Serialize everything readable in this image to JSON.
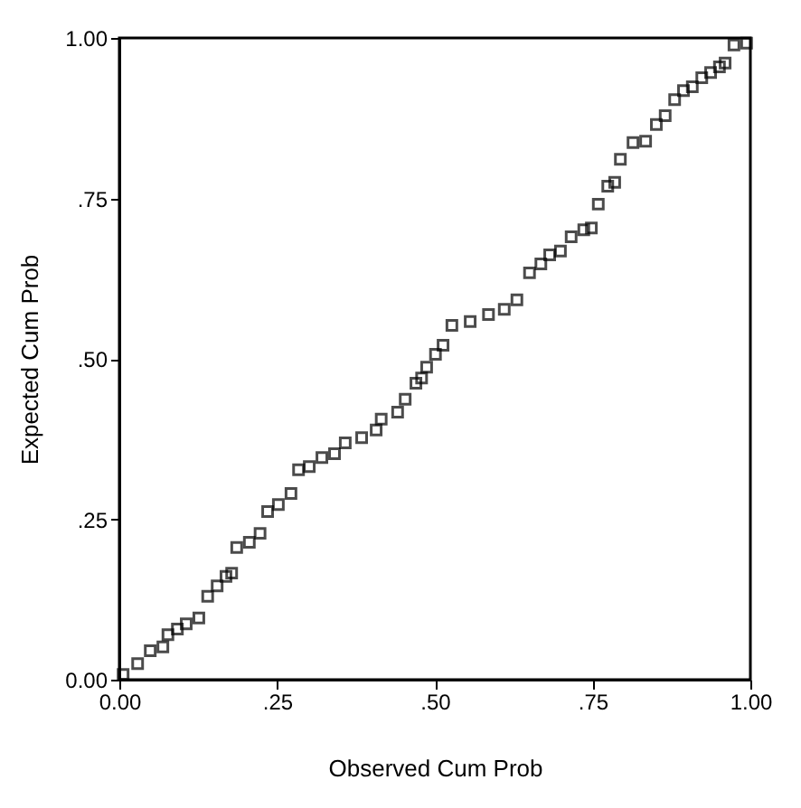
{
  "chart_data": {
    "type": "scatter",
    "xlabel": "Observed Cum Prob",
    "ylabel": "Expected Cum Prob",
    "marker": "square",
    "grid": false,
    "xlim": [
      0,
      1
    ],
    "ylim": [
      0,
      1
    ],
    "xticks": [
      {
        "value": 0,
        "label": "0.00"
      },
      {
        "value": 0.25,
        "label": ".25"
      },
      {
        "value": 0.5,
        "label": ".50"
      },
      {
        "value": 0.75,
        "label": ".75"
      },
      {
        "value": 1,
        "label": "1.00"
      }
    ],
    "yticks": [
      {
        "value": 0,
        "label": "0.00"
      },
      {
        "value": 0.25,
        "label": ".25"
      },
      {
        "value": 0.5,
        "label": ".50"
      },
      {
        "value": 0.75,
        "label": ".75"
      },
      {
        "value": 1,
        "label": "1.00"
      }
    ],
    "series": [
      {
        "color": "#000000",
        "x": [
          0.006,
          0.029,
          0.049,
          0.069,
          0.077,
          0.092,
          0.106,
          0.126,
          0.14,
          0.155,
          0.169,
          0.178,
          0.186,
          0.206,
          0.223,
          0.235,
          0.252,
          0.272,
          0.284,
          0.301,
          0.321,
          0.341,
          0.358,
          0.384,
          0.407,
          0.415,
          0.441,
          0.453,
          0.47,
          0.479,
          0.487,
          0.501,
          0.513,
          0.527,
          0.556,
          0.585,
          0.61,
          0.63,
          0.65,
          0.668,
          0.682,
          0.699,
          0.716,
          0.736,
          0.748,
          0.759,
          0.774,
          0.785,
          0.794,
          0.814,
          0.834,
          0.851,
          0.865,
          0.88,
          0.894,
          0.908,
          0.923,
          0.937,
          0.951,
          0.96,
          0.974,
          0.994
        ],
        "values": [
          0.008,
          0.025,
          0.045,
          0.051,
          0.07,
          0.079,
          0.087,
          0.096,
          0.13,
          0.146,
          0.161,
          0.166,
          0.206,
          0.214,
          0.228,
          0.262,
          0.273,
          0.29,
          0.327,
          0.332,
          0.346,
          0.352,
          0.369,
          0.377,
          0.389,
          0.406,
          0.417,
          0.437,
          0.462,
          0.47,
          0.487,
          0.507,
          0.521,
          0.552,
          0.558,
          0.569,
          0.577,
          0.592,
          0.634,
          0.648,
          0.662,
          0.668,
          0.69,
          0.701,
          0.704,
          0.741,
          0.769,
          0.775,
          0.811,
          0.837,
          0.839,
          0.865,
          0.879,
          0.904,
          0.918,
          0.924,
          0.938,
          0.946,
          0.955,
          0.961,
          0.989,
          0.992
        ]
      }
    ]
  }
}
